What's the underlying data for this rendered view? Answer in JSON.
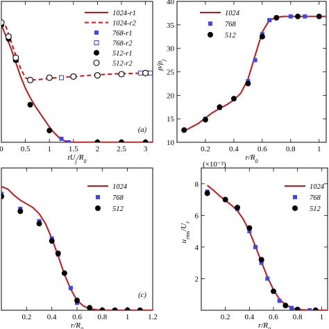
{
  "colors": {
    "red": "#c0171b",
    "blue": "#3f48e6",
    "black": "#000000"
  },
  "chart_data": [
    {
      "id": "a",
      "type": "line",
      "annotation": "(a)",
      "xlabel": "tU_j/R_0",
      "ylabel": "",
      "xlim": [
        0,
        3.15
      ],
      "ylim": [
        0,
        1.2
      ],
      "xticks": [
        0,
        0.5,
        1,
        1.5,
        2,
        2.5,
        3
      ],
      "xticklabels": [
        "0",
        "0.5",
        "1",
        "1.5",
        "2",
        "2.5",
        "3"
      ],
      "legend": {
        "placement": "top-right"
      },
      "series": [
        {
          "name": "1024-r1",
          "kind": "line",
          "style": "solid",
          "color": "#c0171b",
          "x": [
            0,
            0.1,
            0.2,
            0.3,
            0.4,
            0.5,
            0.6,
            0.7,
            0.8,
            0.9,
            1.0,
            1.1,
            1.2,
            1.3,
            1.4,
            1.5,
            2.0,
            2.5,
            3.15
          ],
          "y": [
            1.0,
            0.9,
            0.8,
            0.68,
            0.56,
            0.46,
            0.38,
            0.31,
            0.25,
            0.19,
            0.13,
            0.08,
            0.04,
            0.015,
            0.003,
            0.0,
            0.0,
            0.0,
            0.0
          ]
        },
        {
          "name": "1024-r2",
          "kind": "line",
          "style": "dashed",
          "color": "#c0171b",
          "x": [
            0,
            0.1,
            0.2,
            0.3,
            0.4,
            0.5,
            0.6,
            0.8,
            1.0,
            1.5,
            2.0,
            2.5,
            3.15
          ],
          "y": [
            1.04,
            0.98,
            0.86,
            0.74,
            0.63,
            0.55,
            0.53,
            0.535,
            0.545,
            0.56,
            0.575,
            0.585,
            0.59
          ]
        },
        {
          "name": "768-r1",
          "kind": "marker",
          "marker": "square-filled",
          "color": "#3f48e6",
          "x": [
            1.25,
            1.4,
            2.0,
            2.5,
            3.0
          ],
          "y": [
            0.03,
            0.0,
            0.0,
            0.0,
            0.0
          ]
        },
        {
          "name": "768-r2",
          "kind": "marker",
          "marker": "square-open",
          "color": "#3f48e6",
          "x": [
            0.0,
            0.15,
            0.3,
            0.6,
            1.0,
            1.25,
            1.5,
            2.0,
            2.5,
            2.9,
            3.1
          ],
          "y": [
            1.02,
            0.9,
            0.7,
            0.53,
            0.55,
            0.55,
            0.56,
            0.57,
            0.58,
            0.59,
            0.59
          ]
        },
        {
          "name": "512-r1",
          "kind": "marker",
          "marker": "circle-filled",
          "color": "#000000",
          "x": [
            0.0,
            0.15,
            0.3,
            0.6,
            1.0,
            2.0,
            2.5,
            3.0
          ],
          "y": [
            1.0,
            0.88,
            0.7,
            0.32,
            0.1,
            0.0,
            0.0,
            0.0
          ]
        },
        {
          "name": "512-r2",
          "kind": "marker",
          "marker": "circle-open",
          "color": "#000000",
          "x": [
            0.0,
            0.15,
            0.3,
            0.6,
            1.0,
            1.5,
            2.0,
            2.5,
            3.0
          ],
          "y": [
            1.02,
            0.9,
            0.72,
            0.53,
            0.55,
            0.56,
            0.57,
            0.58,
            0.59
          ]
        }
      ]
    },
    {
      "id": "b",
      "type": "line",
      "annotation": "",
      "xlabel": "r/R_0",
      "ylabel": "ρ/ρ_j",
      "xlim": [
        0,
        1.05
      ],
      "ylim": [
        10,
        40
      ],
      "yticks": [
        10,
        15,
        20,
        25,
        30,
        35,
        40
      ],
      "yticklabels": [
        "10",
        "15",
        "20",
        "25",
        "30",
        "35",
        "40"
      ],
      "xticks": [
        0.2,
        0.4,
        0.6,
        0.8,
        1.0
      ],
      "xticklabels": [
        "0.2",
        "0.4",
        "0.6",
        "0.8",
        "1"
      ],
      "legend": {
        "placement": "top-left"
      },
      "series": [
        {
          "name": "1024",
          "kind": "line",
          "style": "solid",
          "color": "#c0171b",
          "x": [
            0.05,
            0.1,
            0.15,
            0.2,
            0.25,
            0.3,
            0.35,
            0.4,
            0.45,
            0.5,
            0.55,
            0.6,
            0.65,
            0.7,
            0.75,
            0.8,
            0.9,
            1.05
          ],
          "y": [
            12.4,
            13.2,
            14.0,
            15.2,
            16.3,
            17.2,
            18.0,
            19.0,
            20.5,
            23.5,
            28.5,
            33.5,
            36.0,
            36.6,
            36.8,
            36.8,
            36.8,
            36.8
          ]
        },
        {
          "name": "768",
          "kind": "marker",
          "marker": "square-filled",
          "color": "#3f48e6",
          "x": [
            0.05,
            0.2,
            0.3,
            0.4,
            0.5,
            0.55,
            0.6,
            0.65,
            0.7,
            0.8,
            0.9,
            1.0
          ],
          "y": [
            12.6,
            15.0,
            17.3,
            19.2,
            23.0,
            27.5,
            33.0,
            36.0,
            36.6,
            36.8,
            36.8,
            36.8
          ]
        },
        {
          "name": "512",
          "kind": "marker",
          "marker": "circle-filled",
          "color": "#000000",
          "x": [
            0.05,
            0.2,
            0.3,
            0.4,
            0.5,
            0.6,
            0.7,
            0.85,
            1.0
          ],
          "y": [
            12.6,
            14.8,
            17.5,
            19.3,
            22.5,
            32.5,
            36.5,
            36.8,
            36.8
          ]
        }
      ]
    },
    {
      "id": "c",
      "type": "line",
      "annotation": "(c)",
      "xlabel": "r/R_0",
      "ylabel": "",
      "xlim": [
        0,
        1.2
      ],
      "ylim": [
        0,
        1.15
      ],
      "xticks": [
        0.2,
        0.4,
        0.6,
        0.8,
        1.0,
        1.2
      ],
      "xticklabels": [
        "0.2",
        "0.4",
        "0.6",
        "0.8",
        "1",
        "1.2"
      ],
      "legend": {
        "placement": "top-right"
      },
      "series": [
        {
          "name": "1024",
          "kind": "line",
          "style": "solid",
          "color": "#c0171b",
          "x": [
            0.0,
            0.05,
            0.1,
            0.15,
            0.2,
            0.25,
            0.3,
            0.35,
            0.4,
            0.45,
            0.5,
            0.55,
            0.6,
            0.65,
            0.7,
            0.75,
            0.8,
            1.0,
            1.2
          ],
          "y": [
            1.0,
            0.98,
            0.93,
            0.89,
            0.86,
            0.83,
            0.78,
            0.7,
            0.58,
            0.44,
            0.29,
            0.17,
            0.08,
            0.035,
            0.012,
            0.005,
            0.0,
            0.0,
            0.0
          ]
        },
        {
          "name": "768",
          "kind": "marker",
          "marker": "square-filled",
          "color": "#3f48e6",
          "x": [
            0.0,
            0.15,
            0.3,
            0.4,
            0.45,
            0.5,
            0.55,
            0.6,
            0.7,
            0.8,
            0.9,
            1.0,
            1.1
          ],
          "y": [
            0.94,
            0.82,
            0.72,
            0.58,
            0.45,
            0.3,
            0.18,
            0.06,
            0.01,
            0.0,
            0.0,
            0.0,
            0.0
          ]
        },
        {
          "name": "512",
          "kind": "marker",
          "marker": "circle-filled",
          "color": "#000000",
          "x": [
            0.0,
            0.15,
            0.3,
            0.4,
            0.45,
            0.5,
            0.6,
            0.7,
            0.8,
            0.9,
            1.0,
            1.1
          ],
          "y": [
            0.92,
            0.8,
            0.7,
            0.56,
            0.46,
            0.3,
            0.08,
            0.02,
            0.0,
            0.0,
            0.0,
            0.0
          ]
        }
      ]
    },
    {
      "id": "d",
      "type": "line",
      "annotation": "",
      "xlabel": "r/R_0",
      "ylabel": "u_rms/U_r",
      "yscale_label": "(×10⁻²)",
      "xlim": [
        0,
        1.05
      ],
      "ylim": [
        0,
        9
      ],
      "yticks": [
        2,
        4,
        6,
        8
      ],
      "yticklabels": [
        "2",
        "4",
        "6",
        "8"
      ],
      "xticks": [
        0.2,
        0.4,
        0.6,
        0.8,
        1.0
      ],
      "xticklabels": [
        "0.2",
        "0.4",
        "0.6",
        "0.8",
        "1"
      ],
      "legend": {
        "placement": "top-right"
      },
      "series": [
        {
          "name": "1024",
          "kind": "line",
          "style": "solid",
          "color": "#c0171b",
          "x": [
            0.05,
            0.1,
            0.15,
            0.2,
            0.25,
            0.3,
            0.35,
            0.4,
            0.45,
            0.5,
            0.55,
            0.6,
            0.65,
            0.7,
            0.75,
            0.8,
            0.9,
            1.05
          ],
          "y": [
            7.9,
            7.6,
            7.25,
            6.95,
            6.65,
            6.3,
            5.75,
            5.0,
            4.05,
            3.05,
            2.1,
            1.3,
            0.7,
            0.35,
            0.15,
            0.05,
            0.0,
            0.0
          ]
        },
        {
          "name": "768",
          "kind": "marker",
          "marker": "square-filled",
          "color": "#3f48e6",
          "x": [
            0.05,
            0.2,
            0.3,
            0.4,
            0.45,
            0.5,
            0.55,
            0.6,
            0.65,
            0.75,
            0.8,
            0.9
          ],
          "y": [
            7.5,
            7.0,
            6.4,
            5.0,
            4.0,
            3.0,
            2.0,
            1.2,
            0.6,
            0.15,
            0.05,
            0.0
          ]
        },
        {
          "name": "512",
          "kind": "marker",
          "marker": "circle-filled",
          "color": "#000000",
          "x": [
            0.05,
            0.2,
            0.3,
            0.4,
            0.5,
            0.6,
            0.7,
            0.8,
            0.95
          ],
          "y": [
            7.4,
            7.0,
            6.5,
            5.2,
            3.2,
            1.2,
            0.3,
            0.05,
            0.0
          ]
        }
      ]
    }
  ]
}
